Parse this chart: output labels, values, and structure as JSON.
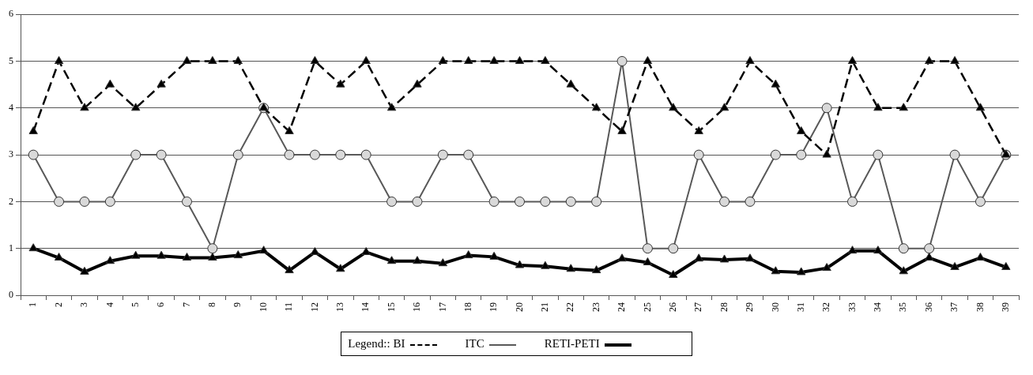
{
  "chart_data": {
    "type": "line",
    "categories": [
      "1",
      "2",
      "3",
      "4",
      "5",
      "6",
      "7",
      "8",
      "9",
      "10",
      "11",
      "12",
      "13",
      "14",
      "15",
      "16",
      "17",
      "18",
      "19",
      "20",
      "21",
      "22",
      "23",
      "24",
      "25",
      "26",
      "27",
      "28",
      "29",
      "30",
      "31",
      "32",
      "33",
      "34",
      "35",
      "36",
      "37",
      "38",
      "39"
    ],
    "series": [
      {
        "name": "BI",
        "color": "#000000",
        "line_style": "dashed",
        "marker": "triangle",
        "values": [
          3.5,
          5,
          4,
          4.5,
          4,
          4.5,
          5,
          5,
          5,
          4,
          3.5,
          5,
          4.5,
          5,
          4,
          4.5,
          5,
          5,
          5,
          5,
          5,
          4.5,
          4,
          3.5,
          5,
          4,
          3.5,
          4,
          5,
          4.5,
          3.5,
          3,
          5,
          4,
          4,
          5,
          5,
          4,
          3
        ]
      },
      {
        "name": "ITC",
        "color": "#595959",
        "line_style": "solid",
        "marker": "circle",
        "values": [
          3,
          2,
          2,
          2,
          3,
          3,
          2,
          1,
          3,
          4,
          3,
          3,
          3,
          3,
          2,
          2,
          3,
          3,
          2,
          2,
          2,
          2,
          2,
          5,
          1,
          1,
          3,
          2,
          2,
          3,
          3,
          4,
          2,
          3,
          1,
          1,
          3,
          2,
          3
        ]
      },
      {
        "name": "RETI-PETI",
        "color": "#000000",
        "line_style": "solid",
        "marker": "triangle",
        "values": [
          1,
          0.8,
          0.5,
          0.73,
          0.84,
          0.84,
          0.8,
          0.8,
          0.85,
          0.95,
          0.53,
          0.92,
          0.56,
          0.92,
          0.73,
          0.73,
          0.68,
          0.85,
          0.82,
          0.64,
          0.62,
          0.56,
          0.53,
          0.78,
          0.7,
          0.43,
          0.78,
          0.76,
          0.78,
          0.51,
          0.49,
          0.58,
          0.95,
          0.95,
          0.51,
          0.8,
          0.6,
          0.8,
          0.6
        ]
      }
    ],
    "ylim": [
      0,
      6
    ],
    "yticks": [
      0,
      1,
      2,
      3,
      4,
      5,
      6
    ],
    "grid": "y",
    "legend": "bottom",
    "legend_title": "Legend::"
  }
}
